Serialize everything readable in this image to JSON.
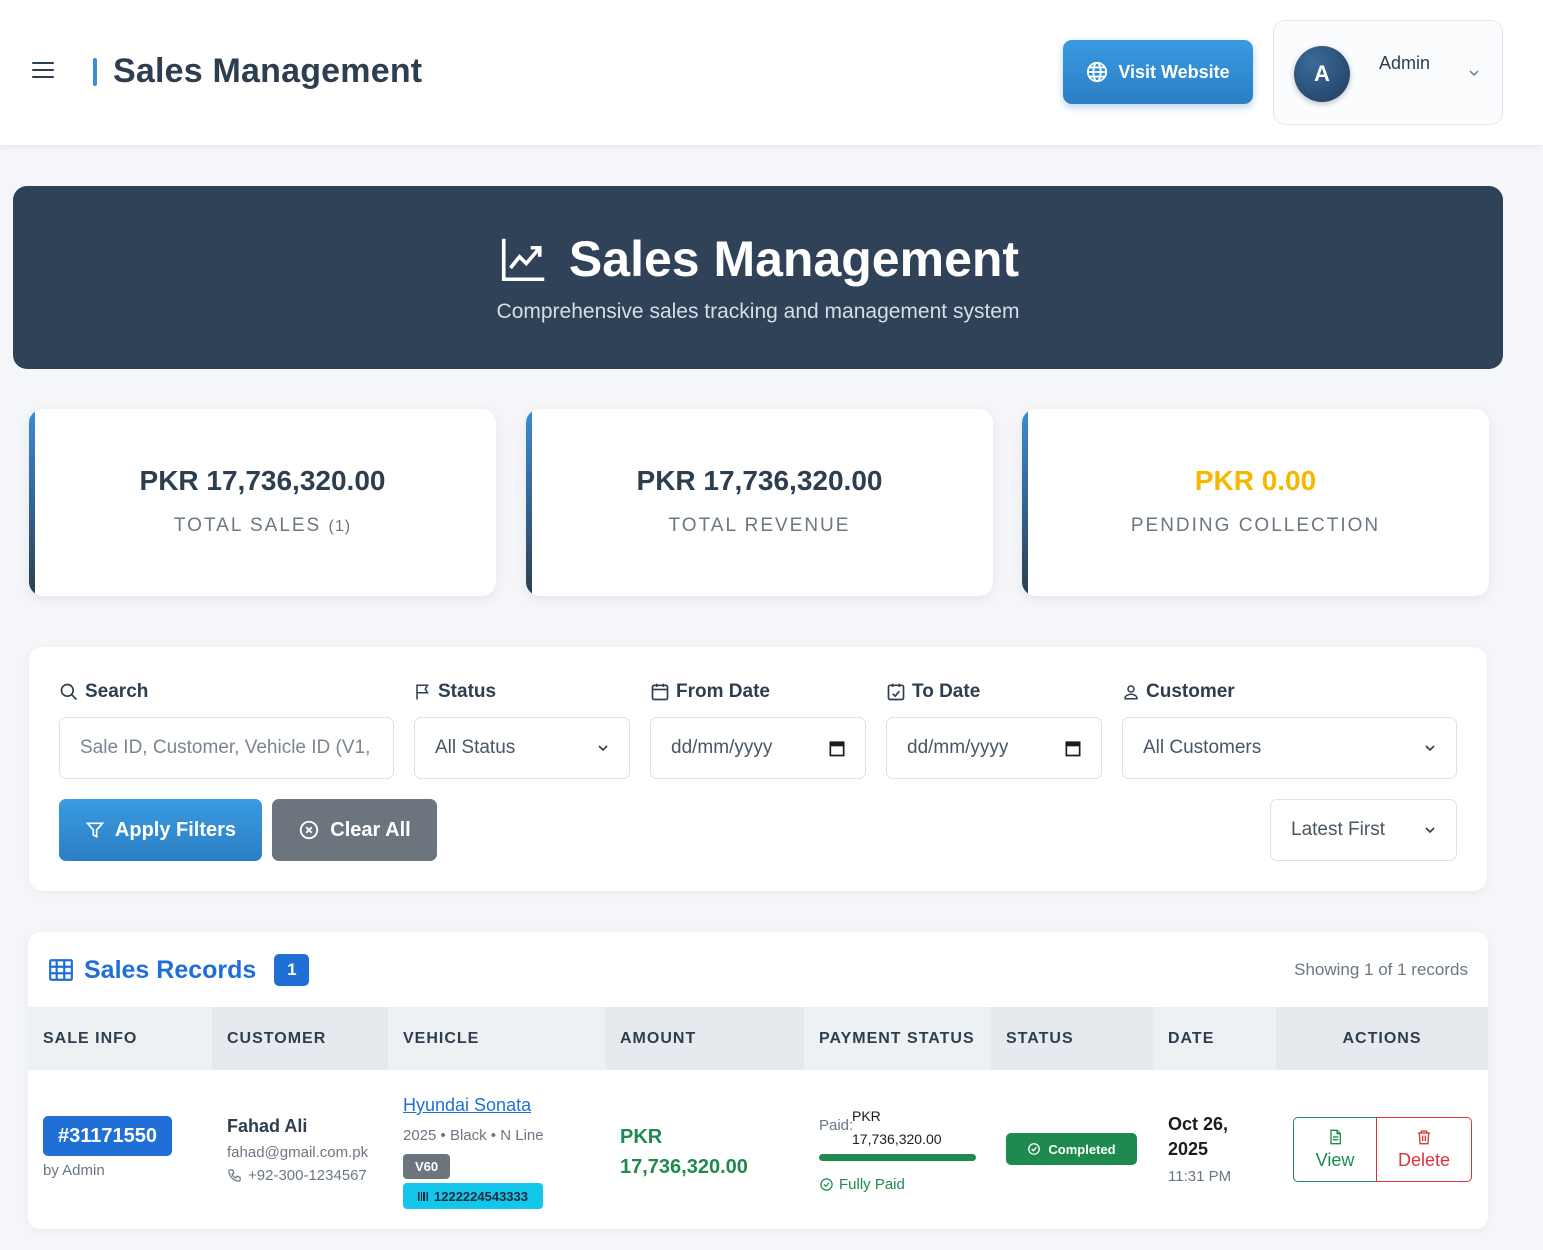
{
  "topbar": {
    "title": "Sales Management",
    "visit_label": "Visit Website",
    "user_initial": "A",
    "user_name": "Admin"
  },
  "hero": {
    "title": "Sales Management",
    "subtitle": "Comprehensive sales tracking and management system"
  },
  "stats": [
    {
      "value": "PKR 17,736,320.00",
      "label": "TOTAL SALES",
      "count": "(1)",
      "color": "#2c3e50"
    },
    {
      "value": "PKR 17,736,320.00",
      "label": "TOTAL REVENUE",
      "color": "#2c3e50"
    },
    {
      "value": "PKR 0.00",
      "label": "PENDING COLLECTION",
      "color": "#f5b800"
    }
  ],
  "filters": {
    "search_label": "Search",
    "search_placeholder": "Sale ID, Customer, Vehicle ID (V1,",
    "status_label": "Status",
    "status_value": "All Status",
    "from_label": "From Date",
    "from_value": "dd/mm/yyyy",
    "to_label": "To Date",
    "to_value": "dd/mm/yyyy",
    "customer_label": "Customer",
    "customer_value": "All Customers",
    "apply_label": "Apply Filters",
    "clear_label": "Clear All",
    "sort_value": "Latest First"
  },
  "records": {
    "title": "Sales Records",
    "count": "1",
    "showing": "Showing 1 of 1 records",
    "columns": [
      "SALE INFO",
      "CUSTOMER",
      "VEHICLE",
      "AMOUNT",
      "PAYMENT STATUS",
      "STATUS",
      "DATE",
      "ACTIONS"
    ],
    "row": {
      "sale_id": "#31171550",
      "sale_by": "by Admin",
      "customer_name": "Fahad Ali",
      "customer_email": "fahad@gmail.com.pk",
      "customer_phone": "+92-300-1234567",
      "vehicle_name": "Hyundai Sonata",
      "vehicle_meta": "2025 • Black • N Line",
      "vehicle_code": "V60",
      "vehicle_vin": "1222224543333",
      "amount_currency": "PKR",
      "amount_value": "17,736,320.00",
      "paid_label": "Paid:",
      "paid_currency": "PKR",
      "paid_value": "17,736,320.00",
      "paid_fraction": 1.0,
      "paid_status": "Fully Paid",
      "status": "Completed",
      "date": "Oct 26, 2025",
      "time": "11:31 PM",
      "view_label": "View",
      "delete_label": "Delete"
    }
  }
}
